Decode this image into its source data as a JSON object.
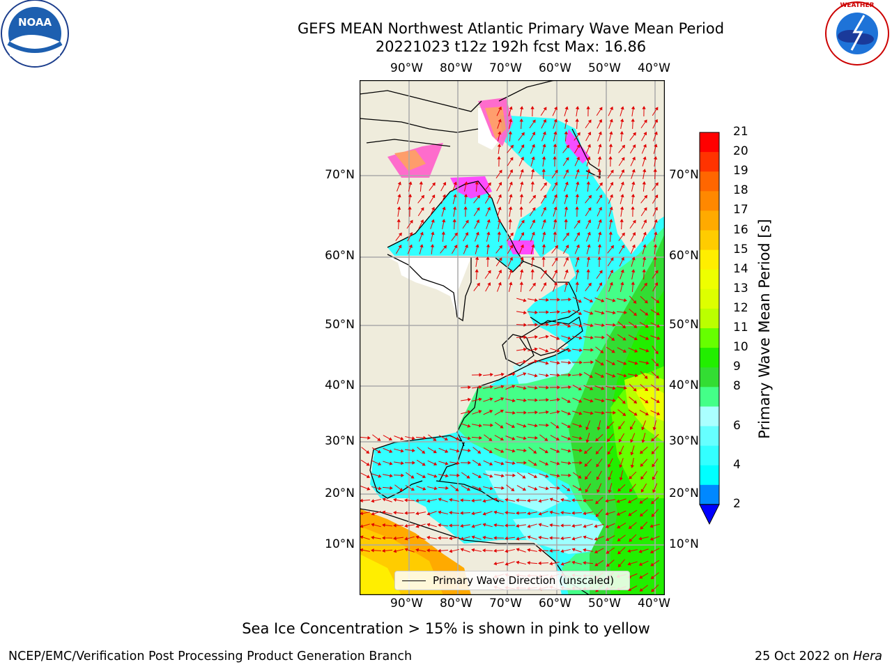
{
  "title": {
    "line1": "GEFS MEAN Northwest Atlantic Primary Wave Mean Period",
    "line2": "20221023 t12z 192h fcst   Max: 16.86"
  },
  "axes": {
    "lon_labels": [
      "90°W",
      "80°W",
      "70°W",
      "60°W",
      "50°W",
      "40°W"
    ],
    "lat_labels": [
      "70°N",
      "60°N",
      "50°N",
      "40°N",
      "30°N",
      "20°N",
      "10°N"
    ]
  },
  "colorbar": {
    "label": "Primary Wave Mean Period [s]",
    "ticks": [
      "21",
      "20",
      "19",
      "18",
      "17",
      "16",
      "15",
      "14",
      "13",
      "12",
      "11",
      "10",
      "9",
      "8",
      "6",
      "4",
      "2"
    ],
    "colors": [
      "#ff0000",
      "#ff3300",
      "#ff6600",
      "#ff8800",
      "#ffaa00",
      "#ffcc00",
      "#ffee00",
      "#eeff00",
      "#ddff00",
      "#bbff00",
      "#66ff00",
      "#22ee00",
      "#33dd33",
      "#44ff88",
      "#aaffff",
      "#66ffff",
      "#33ffff",
      "#00ffff",
      "#0088ff",
      "#0000ff"
    ]
  },
  "legend": {
    "label": "Primary Wave Direction (unscaled)"
  },
  "note": "Sea Ice Concentration > 15% is shown in pink to yellow",
  "footer": {
    "left": "NCEP/EMC/Verification Post Processing Product Generation Branch",
    "date": "25 Oct 2022 on ",
    "host": "Hera"
  },
  "logos": {
    "noaa": "NOAA",
    "nws": "NATIONAL WEATHER SERVICE"
  }
}
